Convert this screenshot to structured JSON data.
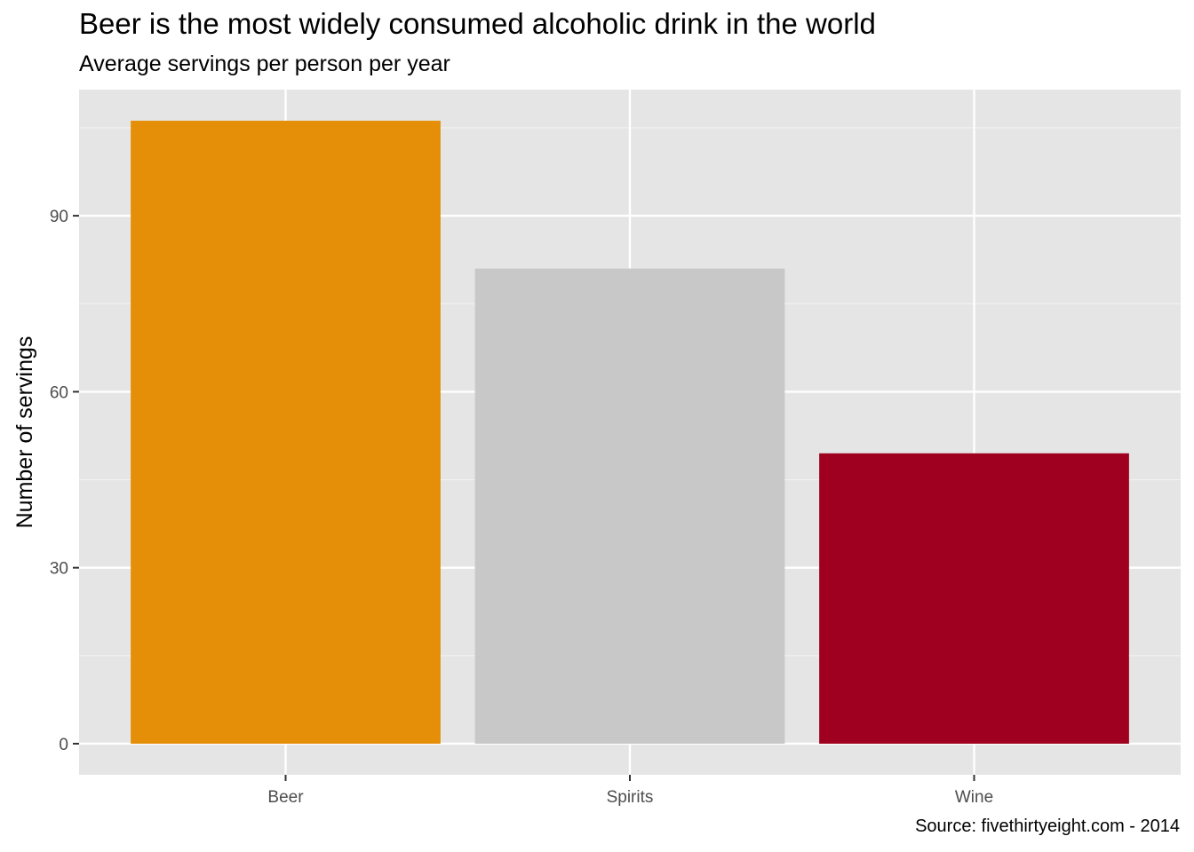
{
  "title": "Beer is the most widely consumed alcoholic drink in the world",
  "subtitle": "Average servings per person per year",
  "caption": "Source: fivethirtyeight.com - 2014",
  "chart_data": {
    "type": "bar",
    "categories": [
      "Beer",
      "Spirits",
      "Wine"
    ],
    "values": [
      106.2,
      81.0,
      49.5
    ],
    "colors": [
      "#E58E07",
      "#C8C8C8",
      "#A00020"
    ],
    "xlabel": "",
    "ylabel": "Number of servings",
    "yticks": [
      0,
      30,
      60,
      90
    ],
    "ylim": [
      -5.3,
      111.5
    ],
    "grid": true,
    "legend": "none"
  }
}
